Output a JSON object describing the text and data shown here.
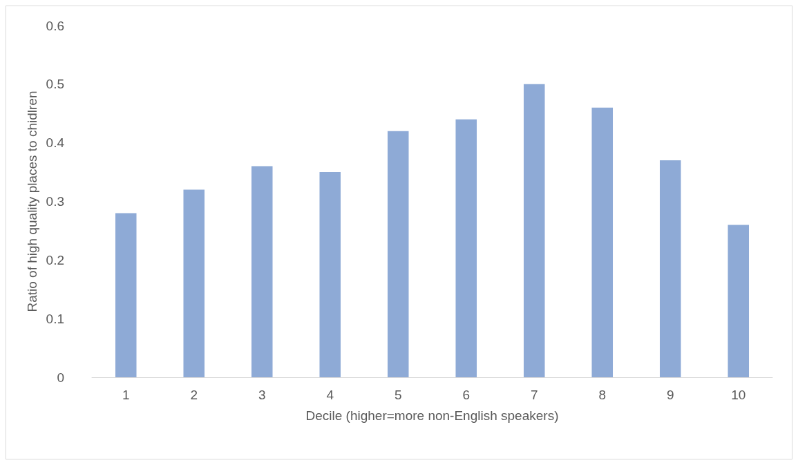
{
  "chart_data": {
    "type": "bar",
    "xlabel": "Decile (higher=more non-English speakers)",
    "ylabel": "Ratio of high quality places to chidlren",
    "categories": [
      "1",
      "2",
      "3",
      "4",
      "5",
      "6",
      "7",
      "8",
      "9",
      "10"
    ],
    "values": [
      0.28,
      0.32,
      0.36,
      0.35,
      0.42,
      0.44,
      0.5,
      0.46,
      0.37,
      0.26
    ],
    "color": "#8eaad6",
    "ylim": [
      0,
      0.6
    ],
    "yticks": [
      0,
      0.1,
      0.2,
      0.3,
      0.4,
      0.5,
      0.6
    ],
    "grid": false
  }
}
